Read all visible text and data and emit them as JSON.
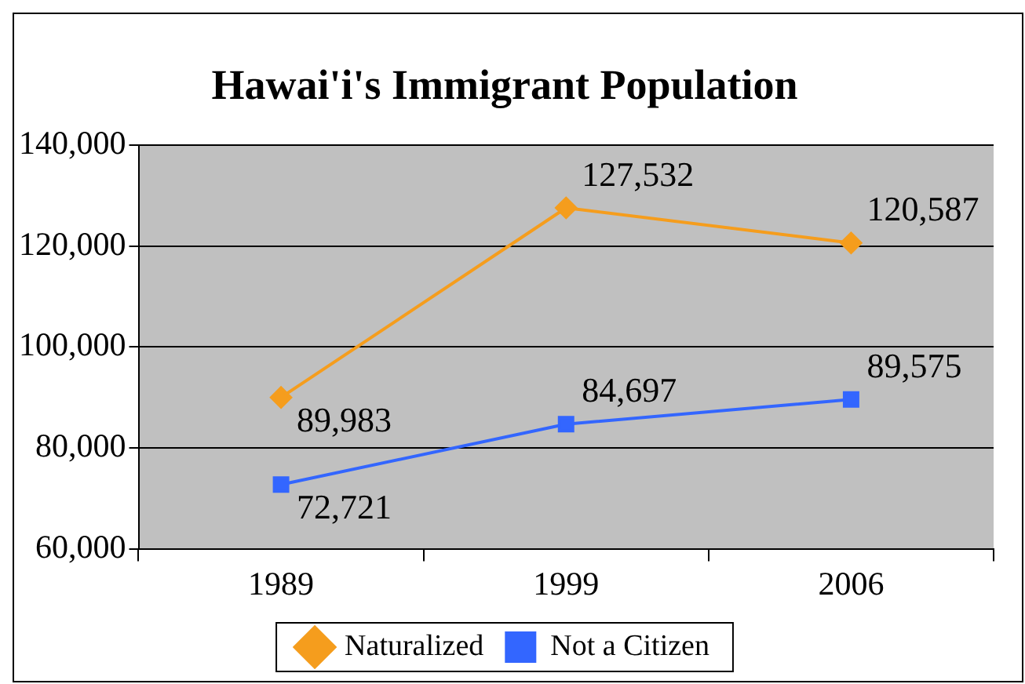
{
  "chart_data": {
    "type": "line",
    "title": "Hawai'i's Immigrant Population",
    "categories": [
      "1989",
      "1999",
      "2006"
    ],
    "series": [
      {
        "name": "Naturalized",
        "color": "#f59d1d",
        "marker": "diamond",
        "values": [
          89983,
          127532,
          120587
        ],
        "value_labels": [
          "89,983",
          "127,532",
          "120,587"
        ]
      },
      {
        "name": "Not a Citizen",
        "color": "#3366ff",
        "marker": "square",
        "values": [
          72721,
          84697,
          89575
        ],
        "value_labels": [
          "72,721",
          "84,697",
          "89,575"
        ]
      }
    ],
    "ylim": [
      60000,
      140000
    ],
    "yticks": [
      {
        "value": 60000,
        "label": "60,000"
      },
      {
        "value": 80000,
        "label": "80,000"
      },
      {
        "value": 100000,
        "label": "100,000"
      },
      {
        "value": 120000,
        "label": "120,000"
      },
      {
        "value": 140000,
        "label": "140,000"
      }
    ],
    "grid": "y",
    "legend": "bottom"
  }
}
